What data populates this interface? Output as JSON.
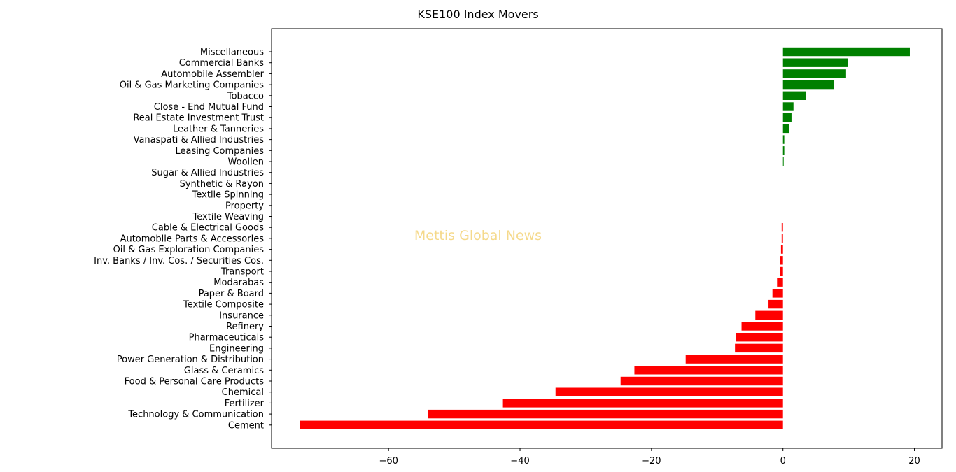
{
  "chart_data": {
    "type": "bar",
    "orientation": "horizontal",
    "title": "KSE100 Index Movers",
    "watermark": "Mettis Global News",
    "xlabel": "",
    "ylabel": "",
    "xlim": [
      -77.8,
      24.2
    ],
    "xticks": [
      -60,
      -40,
      -20,
      0,
      20
    ],
    "xtick_labels": [
      "−60",
      "−40",
      "−20",
      "0",
      "20"
    ],
    "grid": false,
    "legend": "none",
    "colors": {
      "positive": "#008000",
      "negative": "#ff0000",
      "watermark": "#f5d98b"
    },
    "categories": [
      "Miscellaneous",
      "Commercial Banks",
      "Automobile Assembler",
      "Oil & Gas Marketing Companies",
      "Tobacco",
      "Close - End Mutual Fund",
      "Real Estate Investment Trust",
      "Leather & Tanneries",
      "Vanaspati & Allied Industries",
      "Leasing Companies",
      "Woollen",
      "Sugar & Allied Industries",
      "Synthetic & Rayon",
      "Textile Spinning",
      "Property",
      "Textile Weaving",
      "Cable & Electrical Goods",
      "Automobile Parts & Accessories",
      "Oil & Gas Exploration Companies",
      "Inv. Banks / Inv. Cos. / Securities Cos.",
      "Transport",
      "Modarabas",
      "Paper & Board",
      "Textile Composite",
      "Insurance",
      "Refinery",
      "Pharmaceuticals",
      "Engineering",
      "Power Generation & Distribution",
      "Glass & Ceramics",
      "Food & Personal Care Products",
      "Chemical",
      "Fertilizer",
      "Technology & Communication",
      "Cement"
    ],
    "values": [
      19.3,
      9.9,
      9.6,
      7.7,
      3.5,
      1.6,
      1.3,
      0.9,
      0.2,
      0.2,
      0.1,
      0,
      0,
      0,
      0,
      0,
      -0.2,
      -0.2,
      -0.3,
      -0.4,
      -0.4,
      -0.9,
      -1.6,
      -2.2,
      -4.2,
      -6.3,
      -7.2,
      -7.3,
      -14.8,
      -22.6,
      -24.7,
      -34.6,
      -42.6,
      -54.0,
      -73.5
    ]
  }
}
